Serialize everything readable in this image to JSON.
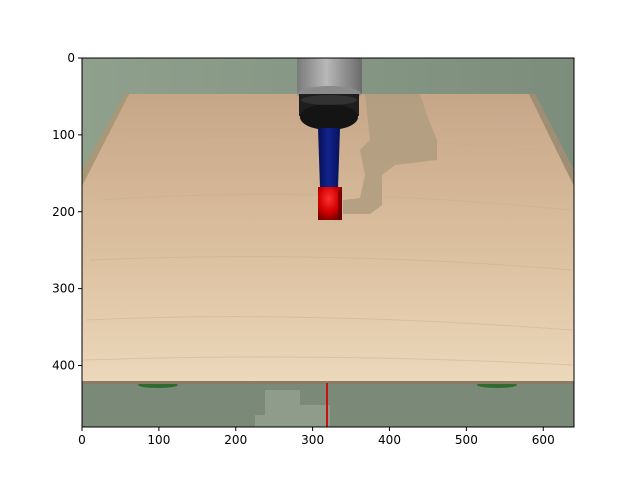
{
  "figure": {
    "x_ticks": [
      "0",
      "100",
      "200",
      "300",
      "400",
      "500",
      "600"
    ],
    "y_ticks": [
      "0",
      "100",
      "200",
      "300",
      "400"
    ]
  },
  "scene": {
    "objects": [
      "table",
      "gripper",
      "red-cube",
      "gripper-shadow",
      "red-marker-line"
    ],
    "colors": {
      "background": "#8c9c8a",
      "table_top": "#d8b995",
      "table_edge": "#8a7a66",
      "floor": "#7b8978",
      "gripper_body": "#a5a5a5",
      "gripper_ring": "#1e1e1e",
      "gripper_finger": "#0a1a7a",
      "cube": "#e00000",
      "shadow": "#b19d81"
    }
  }
}
